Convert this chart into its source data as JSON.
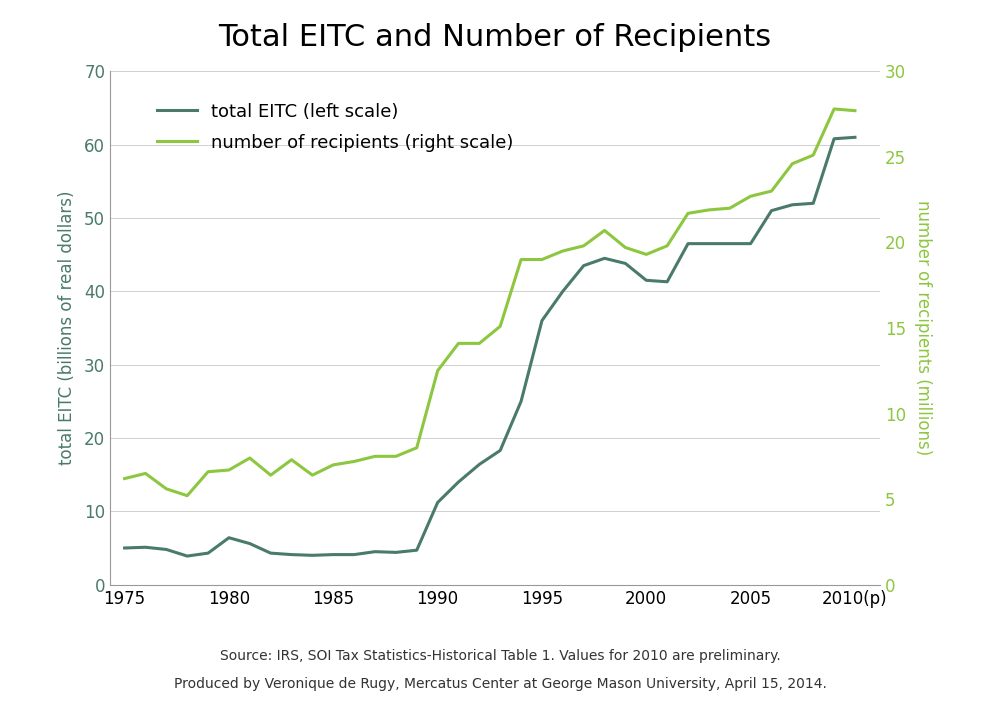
{
  "title": "Total EITC and Number of Recipients",
  "ylabel_left": "total EITC (billions of real dollars)",
  "ylabel_right": "number of recipients (millions)",
  "source_line1": "Source: IRS, SOI Tax Statistics-Historical Table 1. Values for 2010 are preliminary.",
  "source_line2": "Produced by Veronique de Rugy, Mercatus Center at George Mason University, April 15, 2014.",
  "years": [
    1975,
    1976,
    1977,
    1978,
    1979,
    1980,
    1981,
    1982,
    1983,
    1984,
    1985,
    1986,
    1987,
    1988,
    1989,
    1990,
    1991,
    1992,
    1993,
    1994,
    1995,
    1996,
    1997,
    1998,
    1999,
    2000,
    2001,
    2002,
    2003,
    2004,
    2005,
    2006,
    2007,
    2008,
    2009,
    2010
  ],
  "eitc_billions": [
    5.0,
    5.1,
    4.8,
    3.9,
    4.3,
    6.4,
    5.6,
    4.3,
    4.1,
    4.0,
    4.1,
    4.1,
    4.5,
    4.4,
    4.7,
    11.2,
    14.0,
    16.4,
    18.3,
    25.0,
    36.0,
    40.0,
    43.5,
    44.5,
    43.8,
    41.5,
    41.3,
    46.5,
    46.5,
    46.5,
    46.5,
    51.0,
    51.8,
    52.0,
    60.8,
    61.0
  ],
  "recipients_millions": [
    6.2,
    6.5,
    5.6,
    5.2,
    6.6,
    6.7,
    7.4,
    6.4,
    7.3,
    6.4,
    7.0,
    7.2,
    7.5,
    7.5,
    8.0,
    12.5,
    14.1,
    14.1,
    15.1,
    19.0,
    19.0,
    19.5,
    19.8,
    20.7,
    19.7,
    19.3,
    19.8,
    21.7,
    21.9,
    22.0,
    22.7,
    23.0,
    24.6,
    25.1,
    27.8,
    27.7
  ],
  "eitc_color": "#4a7a6a",
  "recipients_color": "#8dc63f",
  "left_label_color": "#4a7a6a",
  "right_label_color": "#8dc63f",
  "ylim_left": [
    0,
    70
  ],
  "ylim_right": [
    0,
    30
  ],
  "yticks_left": [
    0,
    10,
    20,
    30,
    40,
    50,
    60,
    70
  ],
  "yticks_right": [
    0,
    5,
    10,
    15,
    20,
    25,
    30
  ],
  "xticks": [
    1975,
    1980,
    1985,
    1990,
    1995,
    2000,
    2005,
    2010
  ],
  "xlabels": [
    "1975",
    "1980",
    "1985",
    "1990",
    "1995",
    "2000",
    "2005",
    "2010(p)"
  ],
  "xlim": [
    1974.3,
    2011.2
  ],
  "legend_eitc": "total EITC (left scale)",
  "legend_recipients": "number of recipients (right scale)",
  "background_color": "#ffffff",
  "grid_color": "#d0d0d0",
  "spine_color": "#999999",
  "title_fontsize": 22,
  "label_fontsize": 12,
  "tick_fontsize": 12,
  "legend_fontsize": 13,
  "source_fontsize": 10,
  "line_width": 2.2
}
